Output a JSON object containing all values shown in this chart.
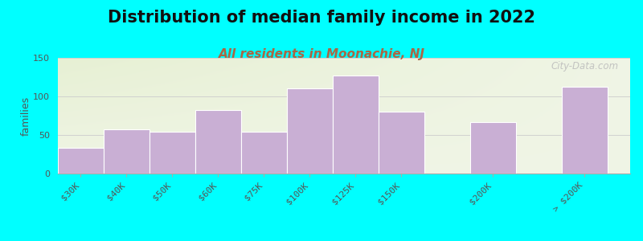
{
  "title": "Distribution of median family income in 2022",
  "subtitle": "All residents in Moonachie, NJ",
  "ylabel": "families",
  "categories": [
    "$30K",
    "$40K",
    "$50K",
    "$60K",
    "$75K",
    "$100K",
    "$125K",
    "$150K",
    "$200K",
    "> $200K"
  ],
  "values": [
    33,
    57,
    54,
    82,
    54,
    110,
    127,
    80,
    67,
    113
  ],
  "bar_color": "#c9afd4",
  "bar_edge_color": "#ffffff",
  "background_color": "#00ffff",
  "plot_bg_color": "#f0f5e8",
  "ylim": [
    0,
    150
  ],
  "yticks": [
    0,
    50,
    100,
    150
  ],
  "title_fontsize": 15,
  "subtitle_fontsize": 11,
  "watermark": "City-Data.com",
  "bar_width": 1.0,
  "bar_positions": [
    0,
    1,
    2,
    3,
    4,
    5,
    6,
    7,
    9,
    11
  ]
}
